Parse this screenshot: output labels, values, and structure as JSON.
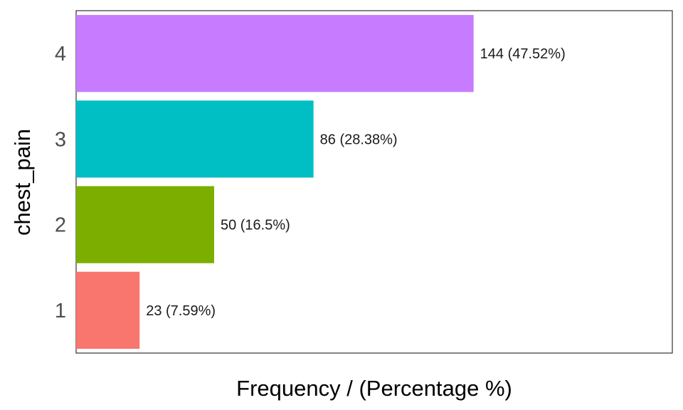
{
  "chart_data": {
    "type": "bar",
    "orientation": "horizontal",
    "xlabel": "Frequency / (Percentage %)",
    "ylabel": "chest_pain",
    "categories": [
      "1",
      "2",
      "3",
      "4"
    ],
    "values": [
      23,
      50,
      86,
      144
    ],
    "data_labels": [
      "23 (7.59%)",
      "50 (16.5%)",
      "86 (28.38%)",
      "144 (47.52%)"
    ],
    "colors": [
      "#F8766D",
      "#7CAE00",
      "#00BFC4",
      "#C77CFF"
    ],
    "xlim": [
      0,
      216
    ],
    "x_ticks_shown": false,
    "grid": false,
    "legend": "none"
  }
}
